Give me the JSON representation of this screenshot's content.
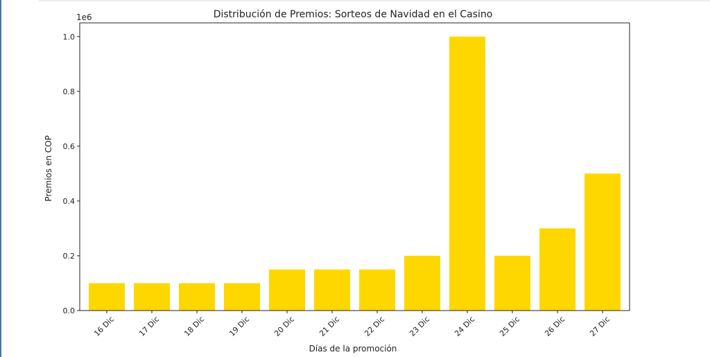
{
  "chart_data": {
    "type": "bar",
    "title": "Distribución de Premios: Sorteos de Navidad en el Casino",
    "xlabel": "Días de la promoción",
    "ylabel": "Premios en COP",
    "y_offset_label": "1e6",
    "categories": [
      "16 Dic",
      "17 Dic",
      "18 Dic",
      "19 Dic",
      "20 Dic",
      "21 Dic",
      "22 Dic",
      "23 Dic",
      "24 Dic",
      "25 Dic",
      "26 Dic",
      "27 Dic"
    ],
    "values": [
      100000,
      100000,
      100000,
      100000,
      150000,
      150000,
      150000,
      200000,
      1000000,
      200000,
      300000,
      500000
    ],
    "ylim": [
      0,
      1050000
    ],
    "yticks": [
      0,
      200000,
      400000,
      600000,
      800000,
      1000000
    ],
    "ytick_labels": [
      "0.0",
      "0.2",
      "0.4",
      "0.6",
      "0.8",
      "1.0"
    ],
    "bar_color": "#ffd700",
    "grid": false
  }
}
